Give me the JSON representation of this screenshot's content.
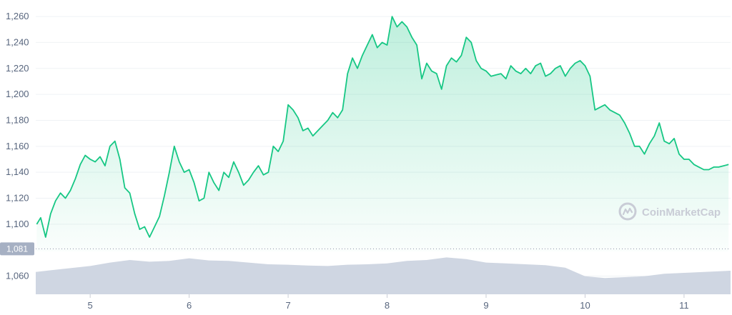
{
  "chart_data": {
    "type": "line",
    "title": "",
    "xlabel": "",
    "ylabel": "",
    "ylim": [
      1046,
      1265
    ],
    "xlim": [
      4.45,
      11.47
    ],
    "y_ticks": [
      "1,260",
      "1,240",
      "1,220",
      "1,200",
      "1,180",
      "1,160",
      "1,140",
      "1,120",
      "1,100",
      "1,060"
    ],
    "y_tick_values": [
      1260,
      1240,
      1220,
      1200,
      1180,
      1160,
      1140,
      1120,
      1100,
      1060
    ],
    "x_ticks": [
      "5",
      "6",
      "7",
      "8",
      "9",
      "10",
      "11"
    ],
    "x_tick_values": [
      5,
      6,
      7,
      8,
      9,
      10,
      11
    ],
    "reference_line": {
      "value": 1081,
      "label": "1,081",
      "style": "dotted"
    },
    "grid": "horizontal",
    "legend": "none",
    "colors": {
      "line": "#16c784",
      "area_top": "#c7f0df",
      "volume": "#cfd6e2",
      "ref_label_bg": "#a6b0c3",
      "grid": "#eff2f5"
    },
    "series": [
      {
        "type": "line",
        "x": [
          4.46,
          4.5,
          4.55,
          4.6,
          4.65,
          4.7,
          4.75,
          4.8,
          4.85,
          4.9,
          4.95,
          5.0,
          5.05,
          5.1,
          5.15,
          5.2,
          5.25,
          5.3,
          5.35,
          5.4,
          5.45,
          5.5,
          5.55,
          5.6,
          5.65,
          5.7,
          5.75,
          5.8,
          5.85,
          5.9,
          5.95,
          6.0,
          6.05,
          6.1,
          6.15,
          6.2,
          6.25,
          6.3,
          6.35,
          6.4,
          6.45,
          6.5,
          6.55,
          6.6,
          6.65,
          6.7,
          6.75,
          6.8,
          6.85,
          6.9,
          6.95,
          7.0,
          7.05,
          7.1,
          7.15,
          7.2,
          7.25,
          7.3,
          7.35,
          7.4,
          7.45,
          7.5,
          7.55,
          7.6,
          7.65,
          7.7,
          7.75,
          7.8,
          7.85,
          7.9,
          7.95,
          8.0,
          8.05,
          8.1,
          8.15,
          8.2,
          8.25,
          8.3,
          8.35,
          8.4,
          8.45,
          8.5,
          8.55,
          8.6,
          8.65,
          8.7,
          8.75,
          8.8,
          8.85,
          8.9,
          8.95,
          9.0,
          9.05,
          9.1,
          9.15,
          9.2,
          9.25,
          9.3,
          9.35,
          9.4,
          9.45,
          9.5,
          9.55,
          9.6,
          9.65,
          9.7,
          9.75,
          9.8,
          9.85,
          9.9,
          9.95,
          10.0,
          10.05,
          10.1,
          10.15,
          10.2,
          10.25,
          10.3,
          10.35,
          10.4,
          10.45,
          10.5,
          10.55,
          10.6,
          10.65,
          10.7,
          10.75,
          10.8,
          10.85,
          10.9,
          10.95,
          11.0,
          11.05,
          11.1,
          11.15,
          11.2,
          11.25,
          11.3,
          11.35,
          11.4,
          11.45
        ],
        "values": [
          1100,
          1105,
          1090,
          1108,
          1118,
          1124,
          1120,
          1126,
          1135,
          1146,
          1153,
          1150,
          1148,
          1152,
          1145,
          1160,
          1164,
          1150,
          1128,
          1124,
          1108,
          1096,
          1098,
          1090,
          1098,
          1106,
          1122,
          1140,
          1160,
          1148,
          1140,
          1142,
          1132,
          1118,
          1120,
          1140,
          1132,
          1126,
          1140,
          1136,
          1148,
          1140,
          1130,
          1134,
          1140,
          1145,
          1138,
          1140,
          1160,
          1156,
          1164,
          1192,
          1188,
          1182,
          1172,
          1174,
          1168,
          1172,
          1176,
          1180,
          1186,
          1182,
          1188,
          1216,
          1228,
          1220,
          1230,
          1238,
          1246,
          1236,
          1240,
          1238,
          1260,
          1252,
          1256,
          1252,
          1244,
          1238,
          1212,
          1224,
          1218,
          1216,
          1204,
          1222,
          1228,
          1225,
          1230,
          1244,
          1240,
          1226,
          1220,
          1218,
          1214,
          1215,
          1216,
          1212,
          1222,
          1218,
          1216,
          1220,
          1216,
          1222,
          1224,
          1214,
          1216,
          1220,
          1222,
          1214,
          1220,
          1224,
          1226,
          1222,
          1214,
          1188,
          1190,
          1192,
          1188,
          1186,
          1184,
          1178,
          1170,
          1160,
          1160,
          1154,
          1162,
          1168,
          1178,
          1164,
          1162,
          1166,
          1154,
          1150,
          1150,
          1146,
          1144,
          1142,
          1142,
          1144,
          1144,
          1145,
          1146
        ]
      },
      {
        "type": "area",
        "name": "volume",
        "x": [
          4.45,
          4.6,
          4.8,
          5.0,
          5.2,
          5.4,
          5.6,
          5.8,
          6.0,
          6.2,
          6.4,
          6.6,
          6.8,
          7.0,
          7.2,
          7.4,
          7.6,
          7.8,
          8.0,
          8.2,
          8.4,
          8.6,
          8.8,
          9.0,
          9.2,
          9.4,
          9.6,
          9.8,
          10.0,
          10.2,
          10.4,
          10.6,
          10.8,
          11.0,
          11.2,
          11.47
        ],
        "values": [
          0.52,
          0.56,
          0.61,
          0.66,
          0.74,
          0.8,
          0.76,
          0.78,
          0.84,
          0.79,
          0.78,
          0.74,
          0.7,
          0.69,
          0.67,
          0.66,
          0.69,
          0.7,
          0.72,
          0.78,
          0.8,
          0.86,
          0.82,
          0.74,
          0.72,
          0.7,
          0.68,
          0.62,
          0.42,
          0.38,
          0.4,
          0.42,
          0.48,
          0.5,
          0.52,
          0.55
        ]
      }
    ]
  },
  "watermark": {
    "text": "CoinMarketCap",
    "icon": "coinmarketcap-logo-icon"
  }
}
